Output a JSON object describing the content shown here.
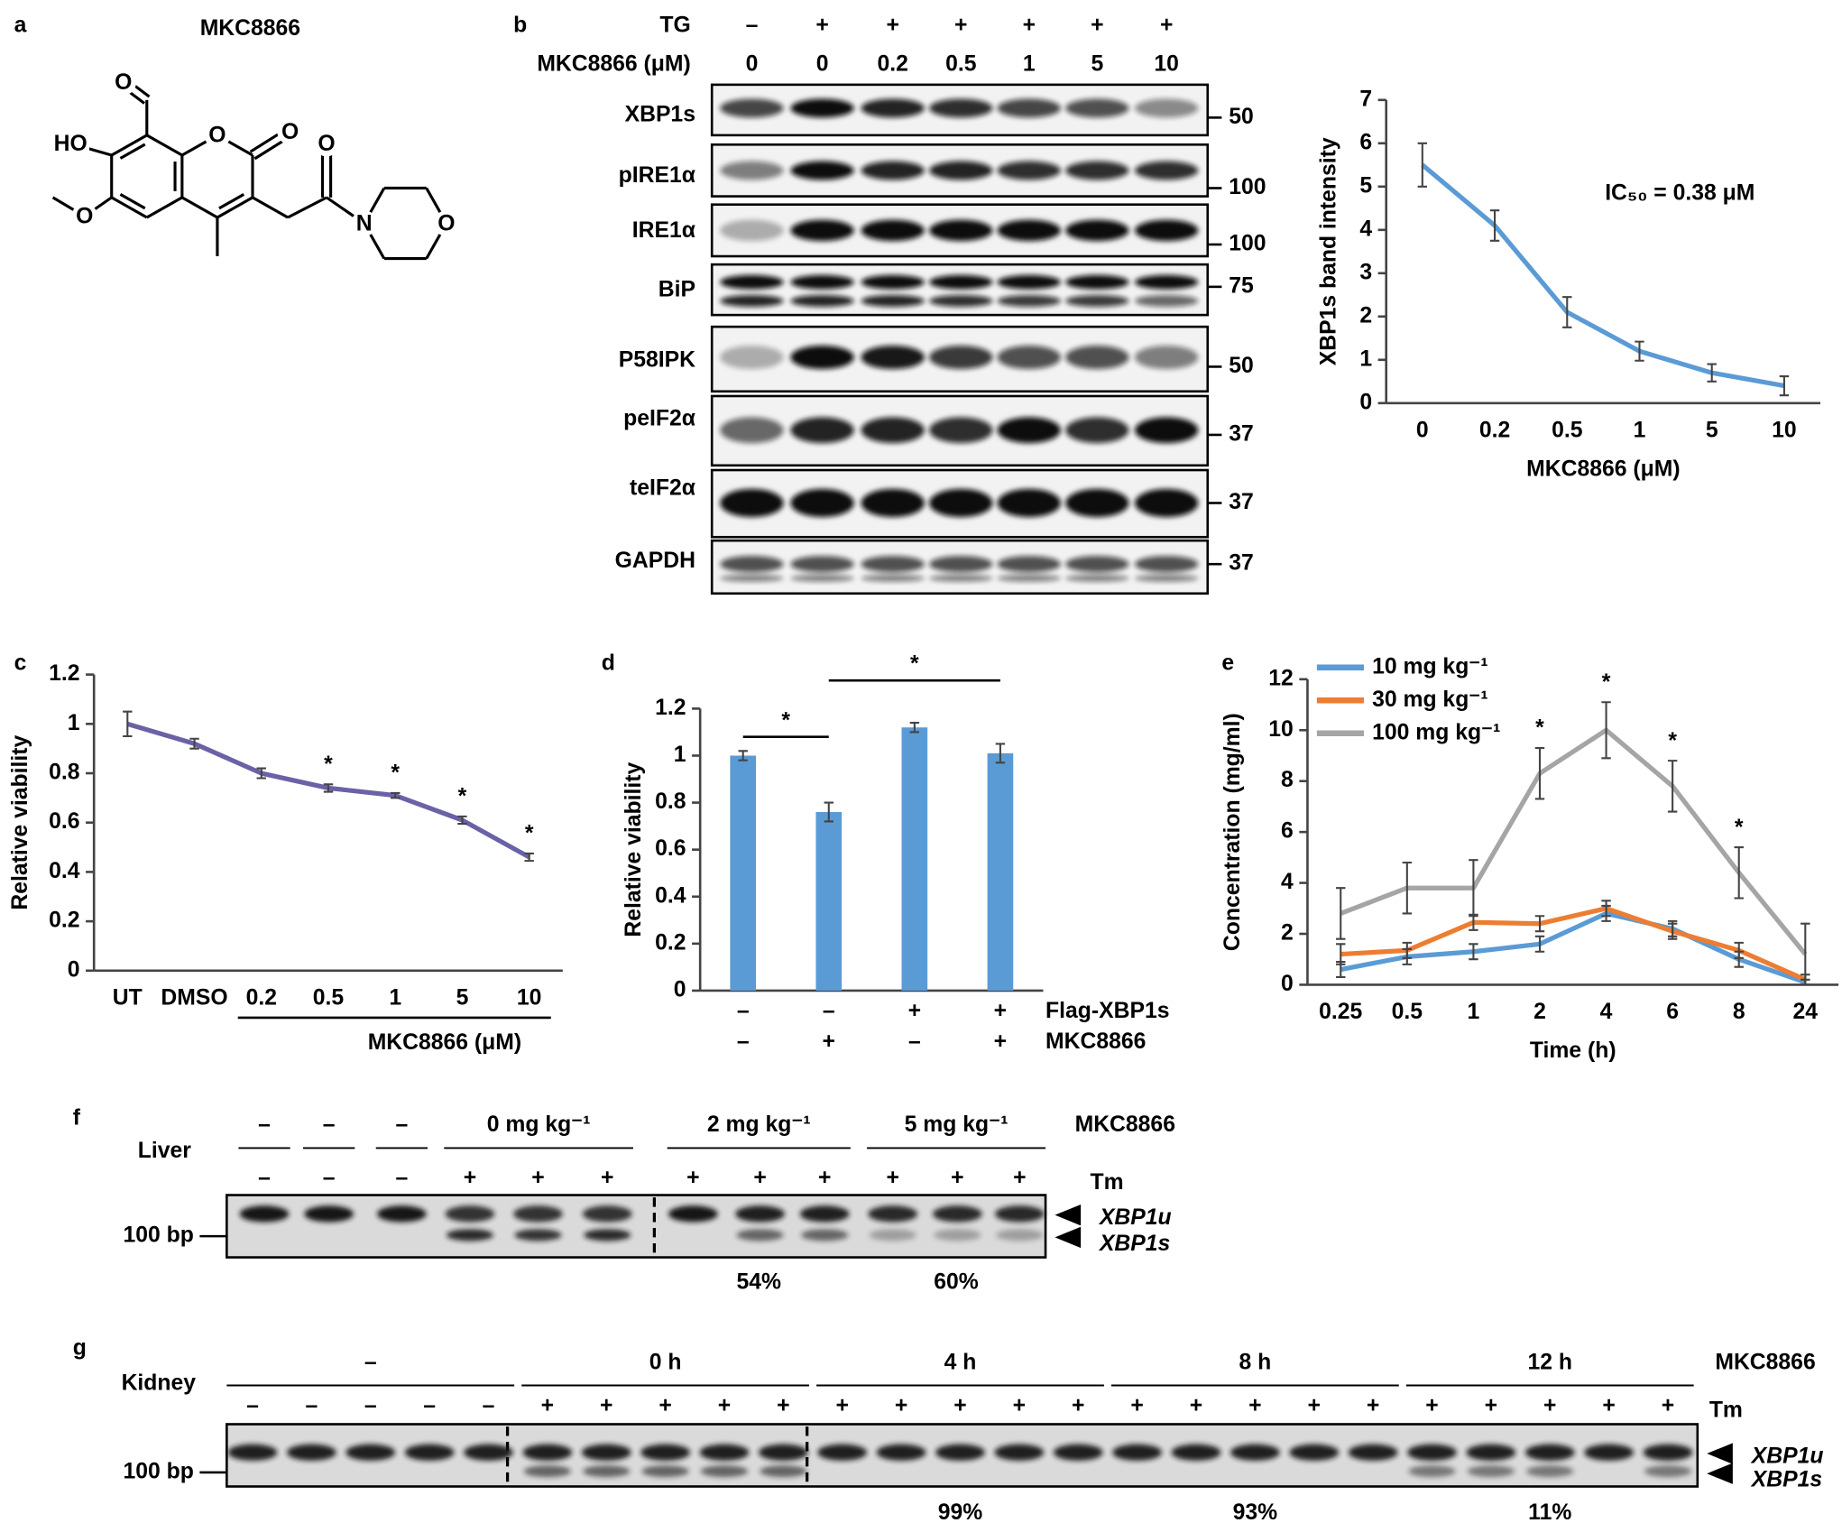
{
  "panel_a": {
    "label": "a",
    "title": "MKC8866",
    "atoms": [
      "O",
      "HO",
      "O",
      "O",
      "O",
      "O",
      "N",
      "O"
    ]
  },
  "panel_b_blot": {
    "label": "b",
    "header": [
      {
        "label": "TG",
        "cells": [
          "–",
          "+",
          "+",
          "+",
          "+",
          "+",
          "+"
        ]
      },
      {
        "label": "MKC8866 (μM)",
        "cells": [
          "0",
          "0",
          "0.2",
          "0.5",
          "1",
          "5",
          "10"
        ]
      }
    ],
    "rows": [
      {
        "label": "XBP1s",
        "marker": "50"
      },
      {
        "label": "pIRE1α",
        "marker": "100"
      },
      {
        "label": "IRE1α",
        "marker": "100"
      },
      {
        "label": "BiP",
        "marker": "75"
      },
      {
        "label": "P58IPK",
        "marker": "50"
      },
      {
        "label": "peIF2α",
        "marker": "37"
      },
      {
        "label": "teIF2α",
        "marker": "37"
      },
      {
        "label": "GAPDH",
        "marker": "37"
      }
    ]
  },
  "chart_data": [
    {
      "type": "line",
      "categories": [
        "0",
        "0.2",
        "0.5",
        "1",
        "5",
        "10"
      ],
      "values": [
        5.5,
        4.1,
        2.1,
        1.2,
        0.7,
        0.4
      ],
      "errors": [
        0.5,
        0.35,
        0.35,
        0.22,
        0.2,
        0.22
      ],
      "color": "#5b9bd5",
      "ylim": [
        0,
        7
      ],
      "yticks": [
        0,
        1,
        2,
        3,
        4,
        5,
        6,
        7
      ],
      "xlabel": "MKC8866 (μM)",
      "ylabel": "XBP1s band intensity",
      "annotation": "IC₅₀ = 0.38 μM"
    },
    {
      "type": "line",
      "panel_label": "c",
      "categories": [
        "UT",
        "DMSO",
        "0.2",
        "0.5",
        "1",
        "5",
        "10"
      ],
      "values": [
        1.0,
        0.92,
        0.8,
        0.74,
        0.71,
        0.61,
        0.46
      ],
      "errors": [
        0.05,
        0.02,
        0.02,
        0.015,
        0.01,
        0.015,
        0.015
      ],
      "color": "#6a62a6",
      "ylim": [
        0,
        1.2
      ],
      "yticks": [
        0,
        0.2,
        0.4,
        0.6,
        0.8,
        1,
        1.2
      ],
      "ylabel": "Relative viability",
      "group_label": "MKC8866 (μM)",
      "significance": [
        null,
        null,
        null,
        "*",
        "*",
        "*",
        "*"
      ]
    },
    {
      "type": "bar",
      "panel_label": "d",
      "categories": [
        null,
        null,
        null,
        null
      ],
      "values": [
        1.0,
        0.76,
        1.12,
        1.01
      ],
      "errors": [
        0.02,
        0.04,
        0.02,
        0.04
      ],
      "color": "#5b9bd5",
      "ylim": [
        0,
        1.2
      ],
      "yticks": [
        0,
        0.2,
        0.4,
        0.6,
        0.8,
        1,
        1.2
      ],
      "ylabel": "Relative viability",
      "x_table": [
        {
          "label": "Flag-XBP1s",
          "cells": [
            "–",
            "–",
            "+",
            "+"
          ]
        },
        {
          "label": "MKC8866",
          "cells": [
            "–",
            "+",
            "–",
            "+"
          ]
        }
      ],
      "comparisons": [
        {
          "text": "*",
          "between": [
            0,
            1
          ]
        },
        {
          "text": "*",
          "between": [
            1,
            3
          ]
        }
      ]
    },
    {
      "type": "line",
      "panel_label": "e",
      "categories": [
        "0.25",
        "0.5",
        "1",
        "2",
        "4",
        "6",
        "8",
        "24"
      ],
      "series": [
        {
          "name": "10 mg kg⁻¹",
          "color": "#5b9bd5",
          "values": [
            0.6,
            1.1,
            1.3,
            1.6,
            2.8,
            2.2,
            1.0,
            0.1
          ],
          "errors": [
            0.3,
            0.3,
            0.3,
            0.3,
            0.3,
            0.3,
            0.3,
            0.1
          ]
        },
        {
          "name": "30 mg kg⁻¹",
          "color": "#ed7d31",
          "values": [
            1.2,
            1.35,
            2.45,
            2.4,
            3.0,
            2.1,
            1.35,
            0.2
          ],
          "errors": [
            0.4,
            0.3,
            0.3,
            0.3,
            0.3,
            0.3,
            0.3,
            0.2
          ]
        },
        {
          "name": "100 mg kg⁻¹",
          "color": "#a5a5a5",
          "values": [
            2.8,
            3.8,
            3.8,
            8.3,
            10.0,
            7.8,
            4.4,
            1.2
          ],
          "errors": [
            1.0,
            1.0,
            1.1,
            1.0,
            1.1,
            1.0,
            1.0,
            1.2
          ]
        }
      ],
      "ylim": [
        0,
        12
      ],
      "yticks": [
        0,
        2,
        4,
        6,
        8,
        10,
        12
      ],
      "xlabel": "Time (h)",
      "ylabel": "Concentration (mg/ml)",
      "legend": "upper left",
      "significance": [
        null,
        null,
        null,
        "*",
        "*",
        "*",
        "*",
        null
      ]
    }
  ],
  "panel_f": {
    "label": "f",
    "tissue": "Liver",
    "treatment": "MKC8866",
    "groups": [
      "–",
      "–",
      "–",
      "0 mg kg⁻¹",
      "2 mg kg⁻¹",
      "5 mg kg⁻¹"
    ],
    "tm_label": "Tm",
    "tm": [
      "–",
      "–",
      "–",
      "+",
      "+",
      "+",
      "+",
      "+",
      "+",
      "+",
      "+",
      "+"
    ],
    "size_marker": "100 bp",
    "band_labels": [
      "XBP1u",
      "XBP1s"
    ],
    "percentages": [
      null,
      null,
      null,
      null,
      "54%",
      "60%"
    ]
  },
  "panel_g": {
    "label": "g",
    "tissue": "Kidney",
    "treatment": "MKC8866",
    "groups": [
      "–",
      "0 h",
      "4 h",
      "8 h",
      "12 h"
    ],
    "tm_label": "Tm",
    "tm": [
      "–",
      "–",
      "–",
      "–",
      "–",
      "+",
      "+",
      "+",
      "+",
      "+",
      "+",
      "+",
      "+",
      "+",
      "+",
      "+",
      "+",
      "+",
      "+",
      "+",
      "+",
      "+",
      "+",
      "+",
      "+"
    ],
    "size_marker": "100 bp",
    "band_labels": [
      "XBP1u",
      "XBP1s"
    ],
    "percentages": [
      null,
      null,
      "99%",
      "93%",
      "11%"
    ]
  }
}
